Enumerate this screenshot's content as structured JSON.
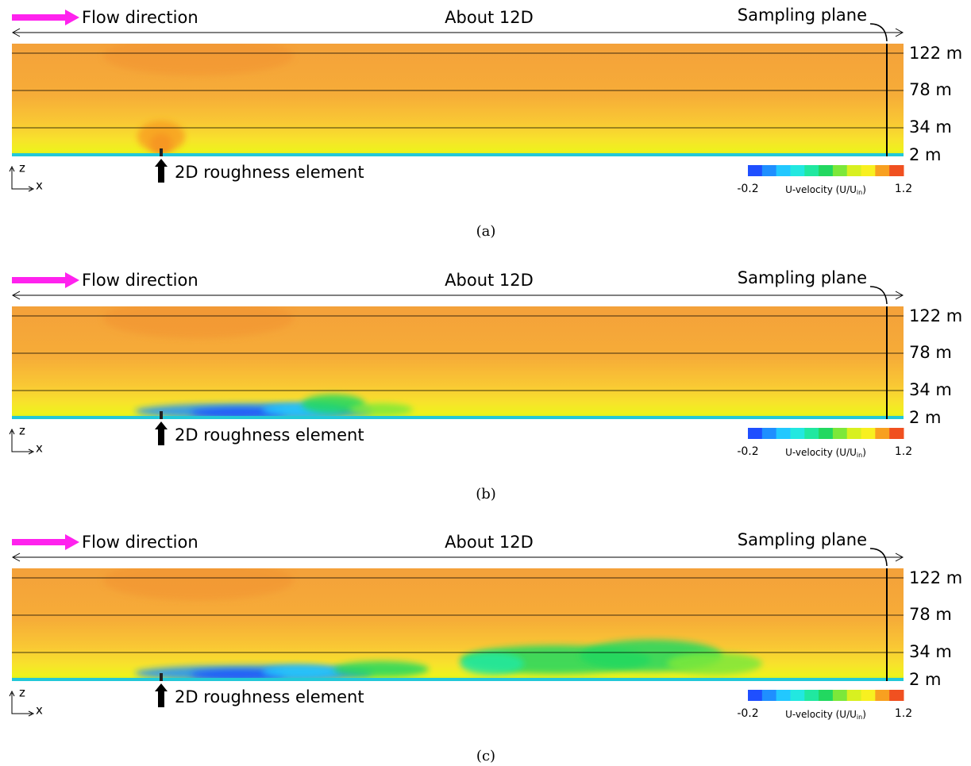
{
  "panels": [
    {
      "flow_label": "Flow direction",
      "span_label": "About 12D",
      "sampling_label": "Sampling plane",
      "heights": [
        "122 m",
        "78 m",
        "34 m",
        "2 m"
      ],
      "element_label": "2D roughness element",
      "axis_z": "z",
      "axis_x": "x",
      "colorbar": {
        "min": "-0.2",
        "max": "1.2",
        "title": [
          "U-velocity (U/U",
          "in",
          ")"
        ]
      },
      "caption": "(a)"
    },
    {
      "flow_label": "Flow direction",
      "span_label": "About 12D",
      "sampling_label": "Sampling plane",
      "heights": [
        "122 m",
        "78 m",
        "34 m",
        "2 m"
      ],
      "element_label": "2D roughness element",
      "axis_z": "z",
      "axis_x": "x",
      "colorbar": {
        "min": "-0.2",
        "max": "1.2",
        "title": [
          "U-velocity (U/U",
          "in",
          ")"
        ]
      },
      "caption": "(b)"
    },
    {
      "flow_label": "Flow direction",
      "span_label": "About 12D",
      "sampling_label": "Sampling plane",
      "heights": [
        "122 m",
        "78 m",
        "34 m",
        "2 m"
      ],
      "element_label": "2D roughness element",
      "axis_z": "z",
      "axis_x": "x",
      "colorbar": {
        "min": "-0.2",
        "max": "1.2",
        "title": [
          "U-velocity (U/U",
          "in",
          ")"
        ]
      },
      "caption": "(c)"
    }
  ]
}
